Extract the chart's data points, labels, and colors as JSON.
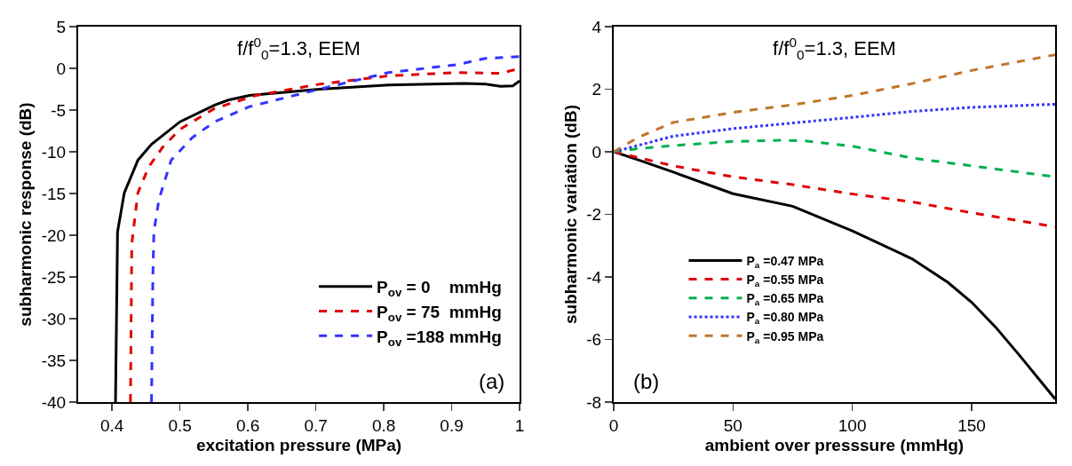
{
  "chart_data": [
    {
      "type": "line",
      "title": "f/f$^{0}$$_{0}$=1.3, EEM",
      "xlabel": "excitation pressure (MPa)",
      "ylabel": "subharmonic response (dB)",
      "annotations": [
        "(a)"
      ],
      "xlim": [
        0.35,
        1
      ],
      "xticks": [
        0.4,
        0.5,
        0.6,
        0.7,
        0.8,
        0.9,
        1
      ],
      "ylim": [
        -40,
        5
      ],
      "yticks": [
        -40,
        -35,
        -30,
        -25,
        -20,
        -15,
        -10,
        -5,
        0,
        5
      ],
      "grid": false,
      "legend": "bottom right",
      "series": [
        {
          "name": "P$_{ov}$ = 0    mmHg",
          "color": "#000000",
          "line_style": "solid",
          "x": [
            0.405,
            0.408,
            0.418,
            0.438,
            0.458,
            0.5,
            0.551,
            0.571,
            0.602,
            0.705,
            0.807,
            0.92,
            0.95,
            0.972,
            0.99,
            1
          ],
          "values": [
            -40,
            -19.6,
            -14.9,
            -11,
            -9.1,
            -6.4,
            -4.4,
            -3.8,
            -3.25,
            -2.5,
            -2.0,
            -1.8,
            -1.9,
            -2.15,
            -2.1,
            -1.5
          ]
        },
        {
          "name": "P$_{ov}$ = 75  mmHg",
          "color": "#e00000",
          "line_style": "dashed",
          "x": [
            0.427,
            0.429,
            0.438,
            0.454,
            0.474,
            0.5,
            0.551,
            0.612,
            0.705,
            0.807,
            0.909,
            0.972,
            1
          ],
          "values": [
            -40,
            -21,
            -14.9,
            -11.8,
            -9.5,
            -7.3,
            -4.8,
            -3.25,
            -1.9,
            -0.9,
            -0.5,
            -0.6,
            0
          ]
        },
        {
          "name": "P$_{ov}$ =188 mmHg",
          "color": "#3333ff",
          "line_style": "dashed",
          "x": [
            0.458,
            0.46,
            0.4615,
            0.469,
            0.487,
            0.518,
            0.551,
            0.602,
            0.705,
            0.807,
            0.909,
            0.95,
            1
          ],
          "values": [
            -40,
            -25,
            -19.6,
            -15.7,
            -11,
            -8.3,
            -6.4,
            -4.6,
            -2.5,
            -0.5,
            0.45,
            1.2,
            1.4
          ]
        }
      ]
    },
    {
      "type": "line",
      "title": "f/f$^{0}$$_{0}$=1.3, EEM",
      "xlabel": "ambient over presssure (mmHg)",
      "ylabel": "subharmonic variation (dB)",
      "annotations": [
        "(b)"
      ],
      "xlim": [
        0,
        185
      ],
      "xticks": [
        0,
        50,
        100,
        150
      ],
      "ylim": [
        -8,
        4
      ],
      "yticks": [
        -8,
        -6,
        -4,
        -2,
        0,
        2,
        4
      ],
      "grid": false,
      "legend": "bottom left",
      "x": [
        0,
        10,
        25,
        50,
        75,
        100,
        125,
        140,
        150,
        160,
        170,
        185
      ],
      "series": [
        {
          "name": "P$_{a}$ =0.47 MPa",
          "color": "#000000",
          "line_style": "solid",
          "values": [
            0,
            -0.25,
            -0.65,
            -1.34,
            -1.74,
            -2.53,
            -3.42,
            -4.17,
            -4.81,
            -5.6,
            -6.5,
            -7.9
          ]
        },
        {
          "name": "P$_{a}$ =0.55 MPa",
          "color": "#e00000",
          "line_style": "dashed",
          "x": [
            0,
            25,
            50,
            75,
            100,
            125,
            150,
            185
          ],
          "values": [
            0,
            -0.45,
            -0.8,
            -1.05,
            -1.35,
            -1.6,
            -1.95,
            -2.4
          ]
        },
        {
          "name": "P$_{a}$ =0.65 MPa",
          "color": "#00b050",
          "line_style": "dashed",
          "x": [
            0,
            10,
            25,
            50,
            70,
            80,
            100,
            125,
            150,
            185
          ],
          "values": [
            0,
            0.1,
            0.2,
            0.33,
            0.37,
            0.35,
            0.18,
            -0.2,
            -0.45,
            -0.8
          ]
        },
        {
          "name": "P$_{a}$ =0.80 MPa",
          "color": "#3333ff",
          "line_style": "dotted",
          "x": [
            0,
            10,
            25,
            50,
            75,
            100,
            125,
            150,
            185
          ],
          "values": [
            0,
            0.2,
            0.5,
            0.74,
            0.92,
            1.1,
            1.29,
            1.42,
            1.52
          ]
        },
        {
          "name": "P$_{a}$ =0.95 MPa",
          "color": "#c0762a",
          "line_style": "dashed",
          "x": [
            0,
            10,
            25,
            50,
            75,
            100,
            125,
            150,
            185
          ],
          "values": [
            0,
            0.45,
            0.94,
            1.26,
            1.5,
            1.8,
            2.18,
            2.6,
            3.1
          ]
        }
      ]
    }
  ]
}
